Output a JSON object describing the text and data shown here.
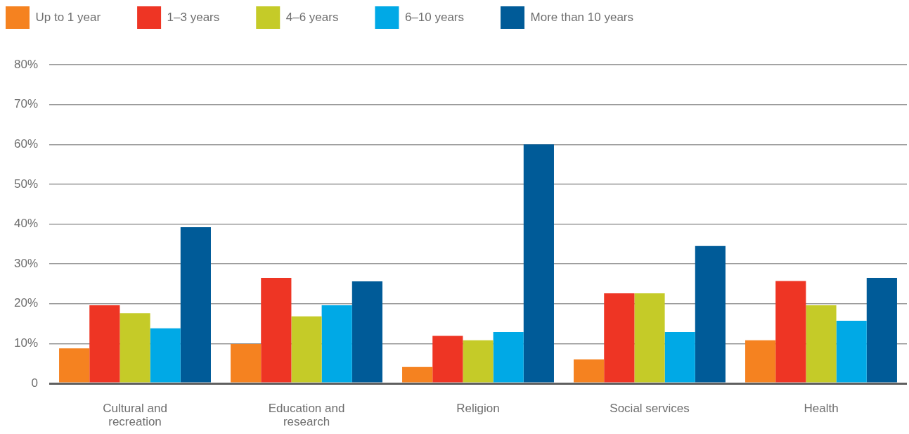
{
  "chart_data": {
    "type": "bar",
    "categories": [
      "Cultural and recreation",
      "Education and research",
      "Religion",
      "Social services",
      "Health"
    ],
    "series": [
      {
        "name": "Up to 1 year",
        "color": "#f58220",
        "values": [
          8.8,
          9.9,
          4.1,
          6.0,
          10.8
        ]
      },
      {
        "name": "1–3 years",
        "color": "#ee3524",
        "values": [
          19.6,
          26.5,
          11.9,
          22.6,
          25.7
        ]
      },
      {
        "name": "4–6 years",
        "color": "#c5cb28",
        "values": [
          17.6,
          16.8,
          10.8,
          22.6,
          19.6
        ]
      },
      {
        "name": "6–10 years",
        "color": "#00a9e6",
        "values": [
          13.8,
          19.6,
          12.9,
          12.9,
          15.7
        ]
      },
      {
        "name": "More than 10 years",
        "color": "#005b98",
        "values": [
          39.2,
          25.6,
          60,
          34.5,
          26.5
        ]
      }
    ],
    "ylim": [
      0,
      80
    ],
    "yticks": [
      0,
      {
        "value": 10,
        "label": "10%"
      },
      {
        "value": 20,
        "label": "20%"
      },
      {
        "value": 30,
        "label": "30%"
      },
      {
        "value": 40,
        "label": "40%"
      },
      {
        "value": 50,
        "label": "50%"
      },
      {
        "value": 60,
        "label": "60%"
      },
      {
        "value": 70,
        "label": "70%"
      },
      {
        "value": 80,
        "label": "80%"
      }
    ],
    "grid": "y",
    "legend": "top left"
  }
}
